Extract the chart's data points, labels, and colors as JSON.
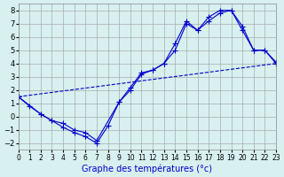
{
  "xlabel": "Graphe des températures (°c)",
  "bg_color": "#d8f0f0",
  "grid_color": "#aaaaaa",
  "line_color": "#0000cc",
  "xlim": [
    0,
    23
  ],
  "ylim": [
    -2.5,
    8.5
  ],
  "yticks": [
    -2,
    -1,
    0,
    1,
    2,
    3,
    4,
    5,
    6,
    7,
    8
  ],
  "xticks": [
    0,
    1,
    2,
    3,
    4,
    5,
    6,
    7,
    8,
    9,
    10,
    11,
    12,
    13,
    14,
    15,
    16,
    17,
    18,
    19,
    20,
    21,
    22,
    23
  ],
  "series1_x": [
    0,
    1,
    2,
    3,
    4,
    5,
    6,
    7,
    8,
    9,
    10,
    11,
    12,
    13,
    14,
    15,
    16,
    17,
    18,
    19,
    20,
    21,
    22,
    23
  ],
  "series1_y": [
    1.5,
    0.8,
    0.2,
    -0.3,
    -0.8,
    -1.2,
    -1.5,
    -2.0,
    -0.7,
    1.1,
    2.0,
    3.2,
    3.5,
    4.0,
    5.0,
    7.0,
    6.5,
    7.5,
    8.0,
    8.0,
    6.5,
    5.0,
    5.0,
    4.0
  ],
  "series2_x": [
    0,
    2,
    3,
    4,
    5,
    6,
    7,
    9,
    10,
    11,
    12,
    13,
    14,
    15,
    16,
    17,
    18,
    19,
    20,
    21,
    22,
    23
  ],
  "series2_y": [
    1.5,
    0.2,
    -0.3,
    -0.5,
    -1.0,
    -1.2,
    -1.8,
    1.1,
    2.2,
    3.3,
    3.5,
    4.0,
    5.5,
    7.2,
    6.5,
    7.2,
    7.8,
    8.0,
    6.8,
    5.0,
    5.0,
    4.1
  ],
  "series3_x": [
    0,
    23
  ],
  "series3_y": [
    1.5,
    4.0
  ]
}
